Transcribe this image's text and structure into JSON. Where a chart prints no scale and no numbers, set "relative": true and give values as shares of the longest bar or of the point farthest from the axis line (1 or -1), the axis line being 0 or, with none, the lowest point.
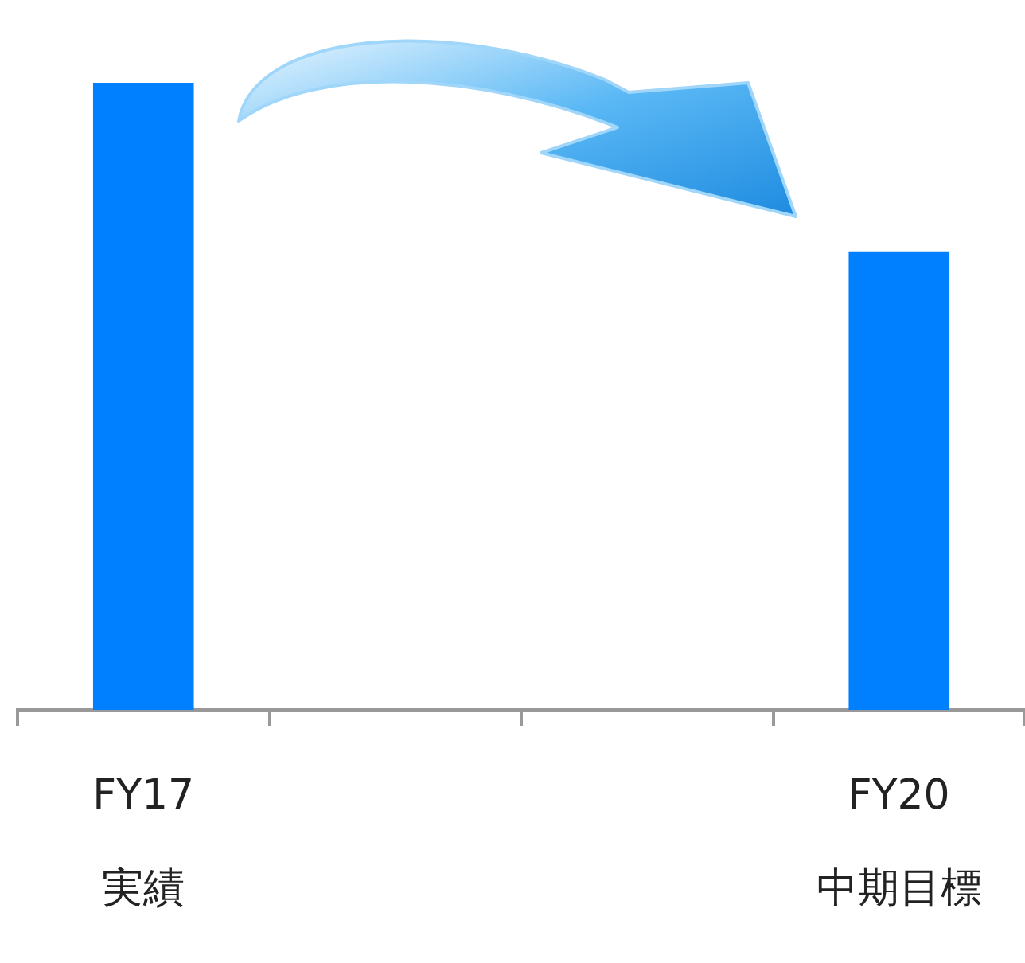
{
  "chart_data": {
    "type": "bar",
    "relative": true,
    "categories": [
      "FY17\n実績",
      null,
      null,
      "FY20\n中期目標"
    ],
    "values": [
      1,
      null,
      null,
      0.73
    ],
    "color": "#0080ff"
  }
}
